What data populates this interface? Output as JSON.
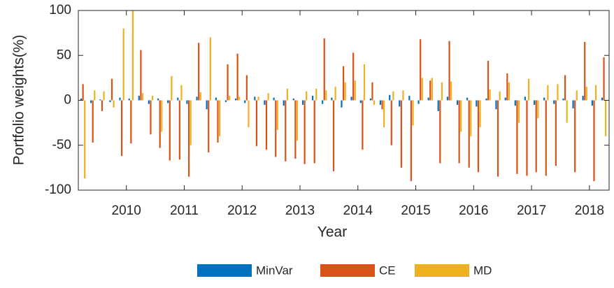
{
  "chart_data": {
    "type": "bar",
    "xlabel": "Year",
    "ylabel": "Portfolio weights(%)",
    "x": [
      2009.25,
      2009.42,
      2009.58,
      2009.75,
      2009.92,
      2010.08,
      2010.25,
      2010.42,
      2010.58,
      2010.75,
      2010.92,
      2011.08,
      2011.25,
      2011.42,
      2011.58,
      2011.75,
      2011.92,
      2012.08,
      2012.25,
      2012.42,
      2012.58,
      2012.75,
      2012.92,
      2013.08,
      2013.25,
      2013.42,
      2013.58,
      2013.75,
      2013.92,
      2014.08,
      2014.25,
      2014.42,
      2014.58,
      2014.75,
      2014.92,
      2015.08,
      2015.25,
      2015.42,
      2015.58,
      2015.75,
      2015.92,
      2016.08,
      2016.25,
      2016.42,
      2016.58,
      2016.75,
      2016.92,
      2017.08,
      2017.25,
      2017.42,
      2017.58,
      2017.75,
      2017.92,
      2018.08,
      2018.25
    ],
    "series": [
      {
        "name": "MinVar",
        "color": "#0072bd",
        "values": [
          2,
          -3,
          1,
          -2,
          3,
          2,
          5,
          -4,
          2,
          -3,
          3,
          -4,
          4,
          -10,
          3,
          -2,
          2,
          -3,
          4,
          -5,
          3,
          -6,
          2,
          -5,
          5,
          -4,
          3,
          -8,
          4,
          -3,
          2,
          -5,
          6,
          -7,
          5,
          -4,
          3,
          -12,
          4,
          -5,
          3,
          -7,
          2,
          -10,
          3,
          -6,
          4,
          -5,
          3,
          -4,
          2,
          -9,
          5,
          -6,
          3
        ]
      },
      {
        "name": "CE",
        "color": "#d95319",
        "values": [
          18,
          -47,
          -12,
          24,
          -62,
          -48,
          56,
          -38,
          -53,
          -67,
          -66,
          -85,
          64,
          -58,
          -47,
          40,
          52,
          28,
          -51,
          -55,
          -63,
          -68,
          -65,
          -71,
          -70,
          69,
          -79,
          38,
          53,
          -55,
          20,
          -10,
          -50,
          -75,
          -90,
          68,
          22,
          -70,
          66,
          -70,
          -75,
          -80,
          44,
          -85,
          30,
          -82,
          -84,
          -80,
          -84,
          -73,
          28,
          -80,
          65,
          -90,
          48
        ]
      },
      {
        "name": "MD",
        "color": "#edb120",
        "values": [
          -87,
          11,
          10,
          -8,
          80,
          100,
          8,
          5,
          -35,
          27,
          17,
          -50,
          9,
          70,
          -40,
          5,
          4,
          -30,
          4,
          8,
          -33,
          13,
          -45,
          10,
          13,
          11,
          15,
          20,
          22,
          40,
          -5,
          -30,
          10,
          11,
          -28,
          25,
          25,
          20,
          21,
          -35,
          -40,
          -30,
          12,
          10,
          20,
          -25,
          24,
          -20,
          17,
          18,
          -25,
          11,
          15,
          17,
          -40
        ]
      }
    ],
    "xlim": [
      2009.17,
      2018.34
    ],
    "xticks": [
      2010,
      2011,
      2012,
      2013,
      2014,
      2015,
      2016,
      2017,
      2018
    ],
    "ylim": [
      -100,
      100
    ],
    "yticks": [
      -100,
      -50,
      0,
      50,
      100
    ]
  }
}
